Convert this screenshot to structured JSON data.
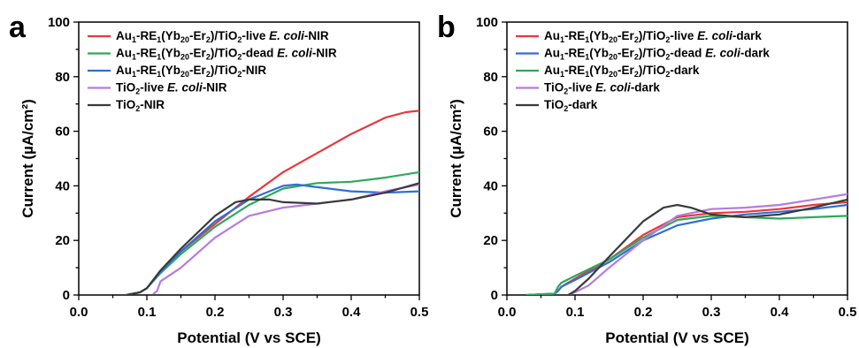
{
  "chart_data": [
    {
      "type": "line",
      "panel_label": "a",
      "xlabel": "Potential (V vs SCE)",
      "ylabel": "Current (µA/cm²)",
      "xlim": [
        0.0,
        0.5
      ],
      "ylim": [
        0,
        100
      ],
      "xticks": [
        0.0,
        0.1,
        0.2,
        0.3,
        0.4,
        0.5
      ],
      "yticks": [
        0,
        20,
        40,
        60,
        80,
        100
      ],
      "xtick_labels": [
        "0.0",
        "0.1",
        "0.2",
        "0.3",
        "0.4",
        "0.5"
      ],
      "ytick_labels": [
        "0",
        "20",
        "40",
        "60",
        "80",
        "100"
      ],
      "legend": "top-left",
      "grid": false,
      "series": [
        {
          "name": "Au1-RE1(Yb20-Er2)/TiO2-live E. coli-NIR",
          "color": "#e8383d",
          "label_parts": [
            [
              "Au",
              "n"
            ],
            [
              "1",
              "sub"
            ],
            [
              "-RE",
              "n"
            ],
            [
              "1",
              "sub"
            ],
            [
              "(Yb",
              "n"
            ],
            [
              "20",
              "sub"
            ],
            [
              "-Er",
              "n"
            ],
            [
              "2",
              "sub"
            ],
            [
              ")/TiO",
              "n"
            ],
            [
              "2",
              "sub"
            ],
            [
              "-live ",
              "n"
            ],
            [
              "E. coli",
              "i"
            ],
            [
              "-NIR",
              "n"
            ]
          ],
          "x": [
            0.07,
            0.09,
            0.1,
            0.12,
            0.15,
            0.2,
            0.25,
            0.3,
            0.35,
            0.4,
            0.45,
            0.48,
            0.5
          ],
          "y": [
            0,
            1,
            2.5,
            8.5,
            16,
            26,
            36,
            45,
            52,
            59,
            65,
            67,
            67.5
          ]
        },
        {
          "name": "Au1-RE1(Yb20-Er2)/TiO2-dead E. coli-NIR",
          "color": "#2ea85c",
          "label_parts": [
            [
              "Au",
              "n"
            ],
            [
              "1",
              "sub"
            ],
            [
              "-RE",
              "n"
            ],
            [
              "1",
              "sub"
            ],
            [
              "(Yb",
              "n"
            ],
            [
              "20",
              "sub"
            ],
            [
              "-Er",
              "n"
            ],
            [
              "2",
              "sub"
            ],
            [
              ")/TiO",
              "n"
            ],
            [
              "2",
              "sub"
            ],
            [
              "-dead ",
              "n"
            ],
            [
              "E. coli",
              "i"
            ],
            [
              "-NIR",
              "n"
            ]
          ],
          "x": [
            0.07,
            0.09,
            0.1,
            0.12,
            0.15,
            0.2,
            0.25,
            0.3,
            0.35,
            0.4,
            0.45,
            0.5
          ],
          "y": [
            0,
            1,
            2.5,
            8,
            15,
            25,
            33,
            39,
            41,
            41.5,
            43,
            45
          ]
        },
        {
          "name": "Au1-RE1(Yb20-Er2)/TiO2-NIR",
          "color": "#2f6fd6",
          "label_parts": [
            [
              "Au",
              "n"
            ],
            [
              "1",
              "sub"
            ],
            [
              "-RE",
              "n"
            ],
            [
              "1",
              "sub"
            ],
            [
              "(Yb",
              "n"
            ],
            [
              "20",
              "sub"
            ],
            [
              "-Er",
              "n"
            ],
            [
              "2",
              "sub"
            ],
            [
              ")/TiO",
              "n"
            ],
            [
              "2",
              "sub"
            ],
            [
              "-NIR",
              "n"
            ]
          ],
          "x": [
            0.07,
            0.09,
            0.1,
            0.12,
            0.15,
            0.2,
            0.25,
            0.3,
            0.32,
            0.35,
            0.4,
            0.45,
            0.5
          ],
          "y": [
            0,
            1,
            2.5,
            8.5,
            16,
            27,
            35,
            40,
            40.5,
            39.5,
            38,
            37.5,
            38
          ]
        },
        {
          "name": "TiO2-live E. coli-NIR",
          "color": "#b57be0",
          "label_parts": [
            [
              "TiO",
              "n"
            ],
            [
              "2",
              "sub"
            ],
            [
              "-live ",
              "n"
            ],
            [
              "E. coli",
              "i"
            ],
            [
              "-NIR",
              "n"
            ]
          ],
          "x": [
            0.11,
            0.115,
            0.12,
            0.15,
            0.2,
            0.25,
            0.3,
            0.35,
            0.4,
            0.45,
            0.5
          ],
          "y": [
            0.5,
            1.5,
            5,
            10,
            21,
            29,
            32,
            33.5,
            35,
            38,
            40.5
          ]
        },
        {
          "name": "TiO2-NIR",
          "color": "#3a3a3a",
          "label_parts": [
            [
              "TiO",
              "n"
            ],
            [
              "2",
              "sub"
            ],
            [
              "-NIR",
              "n"
            ]
          ],
          "x": [
            0.07,
            0.09,
            0.1,
            0.12,
            0.15,
            0.2,
            0.23,
            0.25,
            0.28,
            0.3,
            0.35,
            0.4,
            0.45,
            0.5
          ],
          "y": [
            0,
            1,
            2.5,
            9,
            17,
            29,
            34,
            35,
            35,
            34,
            33.5,
            35,
            37.5,
            41
          ]
        }
      ]
    },
    {
      "type": "line",
      "panel_label": "b",
      "xlabel": "Potential (V vs SCE)",
      "ylabel": "Current (µA/cm²)",
      "xlim": [
        0.0,
        0.5
      ],
      "ylim": [
        0,
        100
      ],
      "xticks": [
        0.0,
        0.1,
        0.2,
        0.3,
        0.4,
        0.5
      ],
      "yticks": [
        0,
        20,
        40,
        60,
        80,
        100
      ],
      "xtick_labels": [
        "0.0",
        "0.1",
        "0.2",
        "0.3",
        "0.4",
        "0.5"
      ],
      "ytick_labels": [
        "0",
        "20",
        "40",
        "60",
        "80",
        "100"
      ],
      "legend": "top-left",
      "grid": false,
      "series": [
        {
          "name": "Au1-RE1(Yb20-Er2)/TiO2-live E. coli-dark",
          "color": "#e8383d",
          "label_parts": [
            [
              "Au",
              "n"
            ],
            [
              "1",
              "sub"
            ],
            [
              "-RE",
              "n"
            ],
            [
              "1",
              "sub"
            ],
            [
              "(Yb",
              "n"
            ],
            [
              "20",
              "sub"
            ],
            [
              "-Er",
              "n"
            ],
            [
              "2",
              "sub"
            ],
            [
              ")/TiO",
              "n"
            ],
            [
              "2",
              "sub"
            ],
            [
              "-live ",
              "n"
            ],
            [
              "E. coli",
              "i"
            ],
            [
              "-dark",
              "n"
            ]
          ],
          "x": [
            0.03,
            0.07,
            0.075,
            0.08,
            0.1,
            0.15,
            0.2,
            0.25,
            0.3,
            0.35,
            0.4,
            0.45,
            0.5
          ],
          "y": [
            0,
            0.5,
            1.5,
            3,
            6,
            13,
            22,
            28.5,
            30,
            30.5,
            31.5,
            33,
            34
          ]
        },
        {
          "name": "Au1-RE1(Yb20-Er2)/TiO2-dead E. coli-dark",
          "color": "#2f6fd6",
          "label_parts": [
            [
              "Au",
              "n"
            ],
            [
              "1",
              "sub"
            ],
            [
              "-RE",
              "n"
            ],
            [
              "1",
              "sub"
            ],
            [
              "(Yb",
              "n"
            ],
            [
              "20",
              "sub"
            ],
            [
              "-Er",
              "n"
            ],
            [
              "2",
              "sub"
            ],
            [
              ")/TiO",
              "n"
            ],
            [
              "2",
              "sub"
            ],
            [
              "-dead ",
              "n"
            ],
            [
              "E. coli",
              "i"
            ],
            [
              "-dark",
              "n"
            ]
          ],
          "x": [
            0.03,
            0.07,
            0.075,
            0.08,
            0.1,
            0.15,
            0.2,
            0.25,
            0.3,
            0.35,
            0.4,
            0.45,
            0.5
          ],
          "y": [
            0,
            0.5,
            1.5,
            3,
            5.5,
            12,
            20,
            25.5,
            28,
            29.5,
            30.5,
            31.5,
            33
          ]
        },
        {
          "name": "Au1-RE1(Yb20-Er2)/TiO2-dark",
          "color": "#2ea85c",
          "label_parts": [
            [
              "Au",
              "n"
            ],
            [
              "1",
              "sub"
            ],
            [
              "-RE",
              "n"
            ],
            [
              "1",
              "sub"
            ],
            [
              "(Yb",
              "n"
            ],
            [
              "20",
              "sub"
            ],
            [
              "-Er",
              "n"
            ],
            [
              "2",
              "sub"
            ],
            [
              ")/TiO",
              "n"
            ],
            [
              "2",
              "sub"
            ],
            [
              "-dark",
              "n"
            ]
          ],
          "x": [
            0.03,
            0.07,
            0.075,
            0.08,
            0.1,
            0.15,
            0.2,
            0.25,
            0.3,
            0.35,
            0.4,
            0.45,
            0.5
          ],
          "y": [
            0,
            0.5,
            3,
            4.5,
            7,
            13,
            21,
            27.5,
            29,
            28.5,
            28,
            28.5,
            29
          ]
        },
        {
          "name": "TiO2-live E. coli-dark",
          "color": "#b57be0",
          "label_parts": [
            [
              "TiO",
              "n"
            ],
            [
              "2",
              "sub"
            ],
            [
              "-live ",
              "n"
            ],
            [
              "E. coli",
              "i"
            ],
            [
              "-dark",
              "n"
            ]
          ],
          "x": [
            0.09,
            0.1,
            0.12,
            0.15,
            0.2,
            0.25,
            0.3,
            0.35,
            0.4,
            0.45,
            0.5
          ],
          "y": [
            0,
            1,
            3.5,
            10,
            20,
            29,
            31.5,
            32,
            33,
            35,
            37
          ]
        },
        {
          "name": "TiO2-dark",
          "color": "#3a3a3a",
          "label_parts": [
            [
              "TiO",
              "n"
            ],
            [
              "2",
              "sub"
            ],
            [
              "-dark",
              "n"
            ]
          ],
          "x": [
            0.09,
            0.1,
            0.12,
            0.15,
            0.2,
            0.23,
            0.25,
            0.27,
            0.3,
            0.35,
            0.4,
            0.45,
            0.5
          ],
          "y": [
            0,
            1.5,
            6,
            14,
            27,
            32,
            33,
            32,
            29.5,
            28.5,
            29.5,
            32,
            35
          ]
        }
      ]
    }
  ]
}
